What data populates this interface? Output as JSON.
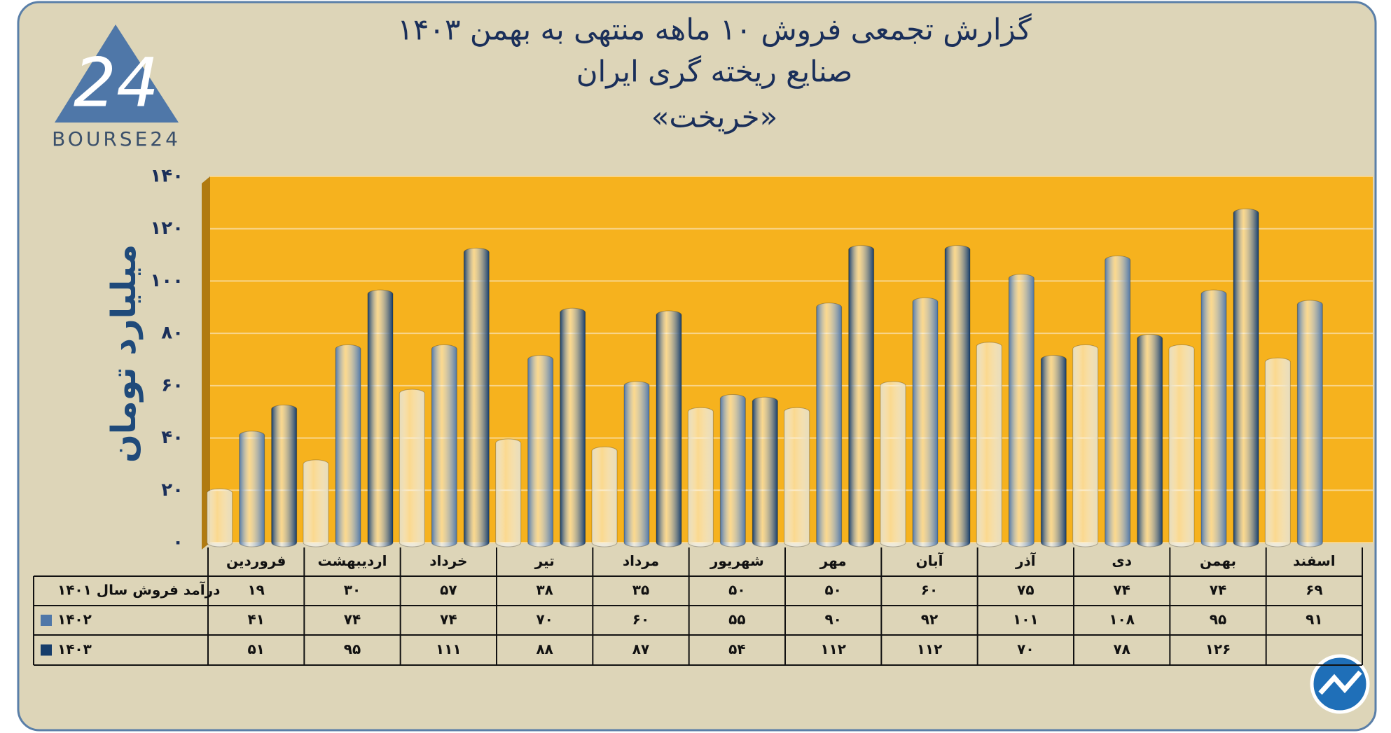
{
  "chart_data": {
    "type": "bar",
    "title": "گزارش تجمعی فروش ۱۰ ماهه منتهی به بهمن ۱۴۰۳",
    "subtitle": "صنایع ریخته گری ایران",
    "subtitle2": "«خریخت»",
    "y_label": "میلیارد تومان",
    "categories": [
      "فروردین",
      "اردیبهشت",
      "خرداد",
      "تیر",
      "مرداد",
      "شهریور",
      "مهر",
      "آبان",
      "آذر",
      "دی",
      "بهمن",
      "اسفند"
    ],
    "series": [
      {
        "name": "درآمد فروش سال ۱۴۰۱",
        "color": "#e6dcbc",
        "values": [
          19,
          30,
          57,
          38,
          35,
          50,
          50,
          60,
          75,
          74,
          74,
          69
        ],
        "value_labels": [
          "۱۹",
          "۳۰",
          "۵۷",
          "۳۸",
          "۳۵",
          "۵۰",
          "۵۰",
          "۶۰",
          "۷۵",
          "۷۴",
          "۷۴",
          "۶۹"
        ]
      },
      {
        "name": "۱۴۰۲",
        "color": "#4f77a8",
        "values": [
          41,
          74,
          74,
          70,
          60,
          55,
          90,
          92,
          101,
          108,
          95,
          91
        ],
        "value_labels": [
          "۴۱",
          "۷۴",
          "۷۴",
          "۷۰",
          "۶۰",
          "۵۵",
          "۹۰",
          "۹۲",
          "۱۰۱",
          "۱۰۸",
          "۹۵",
          "۹۱"
        ]
      },
      {
        "name": "۱۴۰۳",
        "color": "#163d6b",
        "values": [
          51,
          95,
          111,
          88,
          87,
          54,
          112,
          112,
          70,
          78,
          126,
          null
        ],
        "value_labels": [
          "۵۱",
          "۹۵",
          "۱۱۱",
          "۸۸",
          "۸۷",
          "۵۴",
          "۱۱۲",
          "۱۱۲",
          "۷۰",
          "۷۸",
          "۱۲۶",
          null
        ]
      }
    ],
    "ylim": [
      0,
      140
    ],
    "yticks": [
      {
        "value": 0,
        "label": "۰"
      },
      {
        "value": 20,
        "label": "۲۰"
      },
      {
        "value": 40,
        "label": "۴۰"
      },
      {
        "value": 60,
        "label": "۶۰"
      },
      {
        "value": 80,
        "label": "۸۰"
      },
      {
        "value": 100,
        "label": "۱۰۰"
      },
      {
        "value": 120,
        "label": "۱۲۰"
      },
      {
        "value": 140,
        "label": "۱۴۰"
      }
    ],
    "grid": true
  },
  "logo": {
    "mark": "24",
    "name": "BOURSE24"
  }
}
